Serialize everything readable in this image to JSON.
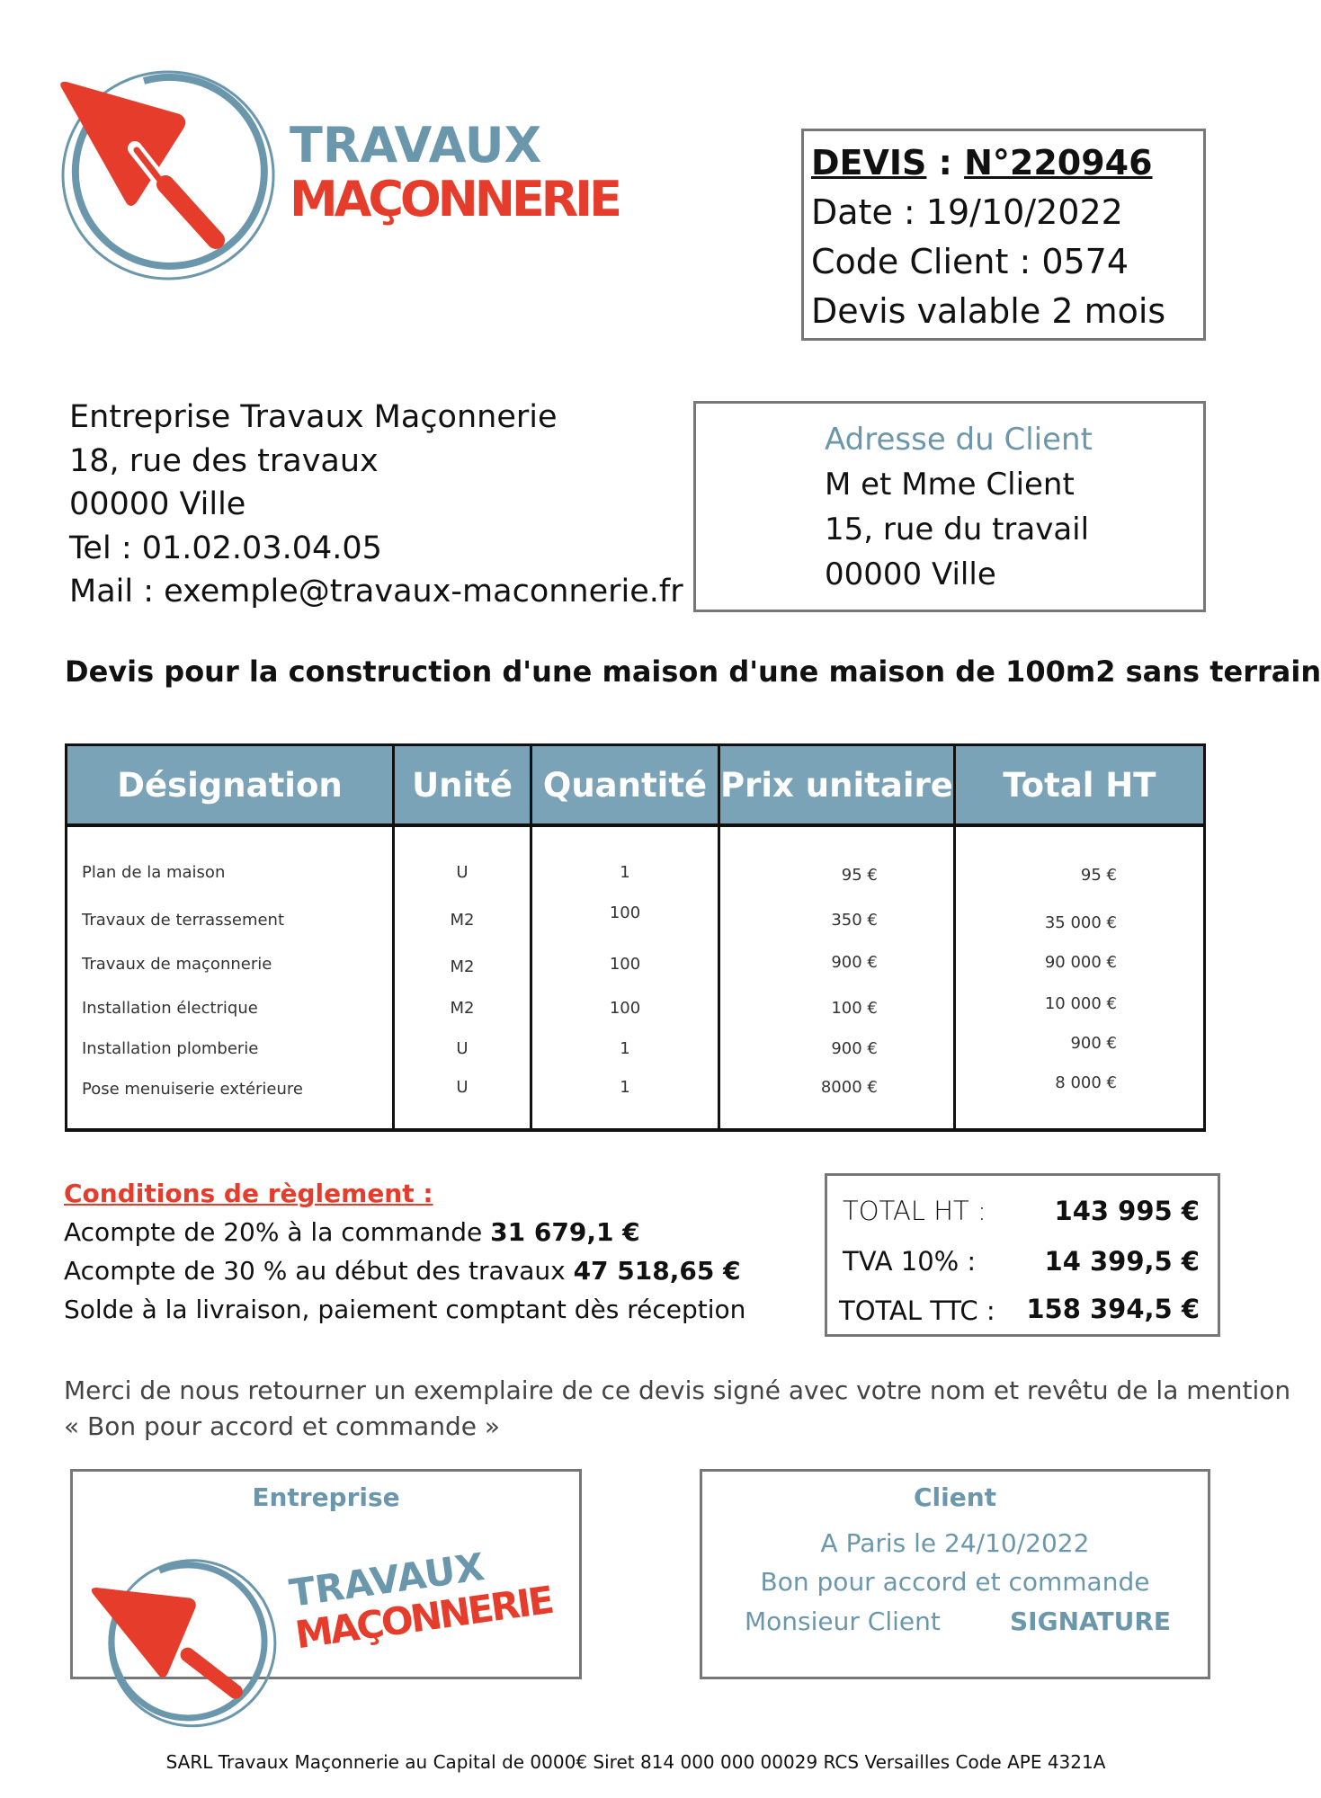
{
  "logo": {
    "line1": "TRAVAUX",
    "line2": "MAÇONNERIE",
    "colors": {
      "blue": "#6b97ad",
      "red": "#e63c2b"
    }
  },
  "devis": {
    "label": "DEVIS",
    "sep": " : ",
    "number": "N°220946",
    "date": "Date : 19/10/2022",
    "code_client": "Code Client : 0574",
    "validity": "Devis valable 2 mois"
  },
  "company": {
    "name": "Entreprise Travaux Maçonnerie",
    "street": "18, rue des travaux",
    "city": "00000 Ville",
    "tel": "Tel : 01.02.03.04.05",
    "mail": "Mail : exemple@travaux-maconnerie.fr"
  },
  "client": {
    "heading": "Adresse du Client",
    "name": "M et Mme Client",
    "street": "15, rue du travail",
    "city": "00000 Ville"
  },
  "title": "Devis pour la construction d'une maison d'une maison de 100m2 sans terrain",
  "table": {
    "headers": [
      "Désignation",
      "Unité",
      "Quantité",
      "Prix unitaire",
      "Total HT"
    ],
    "designation": [
      "Plan de la maison",
      "Travaux de terrassement",
      "Travaux de maçonnerie",
      "Installation électrique",
      "Installation plomberie",
      "Pose menuiserie extérieure"
    ],
    "unite": [
      "U",
      "M2",
      "M2",
      "M2",
      "U",
      "U"
    ],
    "quantite": [
      "1",
      "100",
      "100",
      "100",
      "1",
      "1"
    ],
    "prix_unitaire": [
      "95 €",
      "350 €",
      "900 €",
      "100 €",
      "900 €",
      "8000 €"
    ],
    "total_ht": [
      "95 €",
      "35 000 €",
      "90 000 €",
      "10 000 €",
      "900 €",
      "8 000 €"
    ]
  },
  "conditions": {
    "heading": "Conditions de règlement :",
    "line1": "Acompte de 20% à la commande ",
    "line1_amount": "31 679,1 €",
    "line2": "Acompte de 30 % au début des travaux ",
    "line2_amount": "47 518,65 €",
    "line3": "Solde à la livraison, paiement comptant dès réception"
  },
  "totals": {
    "ht_label": "TOTAL HT :",
    "ht": "143 995 €",
    "tva_label": "TVA 10% :",
    "tva": "14 399,5 €",
    "ttc_label": "TOTAL TTC :",
    "ttc": "158 394,5 €"
  },
  "notice": {
    "line1": "Merci de nous retourner un exemplaire de ce devis signé avec votre nom et revêtu de la mention",
    "line2": "« Bon pour accord et commande »"
  },
  "signature": {
    "company_heading": "Entreprise",
    "client_heading": "Client",
    "client_place": "A Paris le 24/10/2022",
    "client_mention": "Bon pour accord et commande",
    "client_name": "Monsieur Client",
    "client_signature": "SIGNATURE"
  },
  "footer": "SARL Travaux Maçonnerie au Capital de 0000€ Siret 814 000 000 00029 RCS Versailles Code APE 4321A"
}
